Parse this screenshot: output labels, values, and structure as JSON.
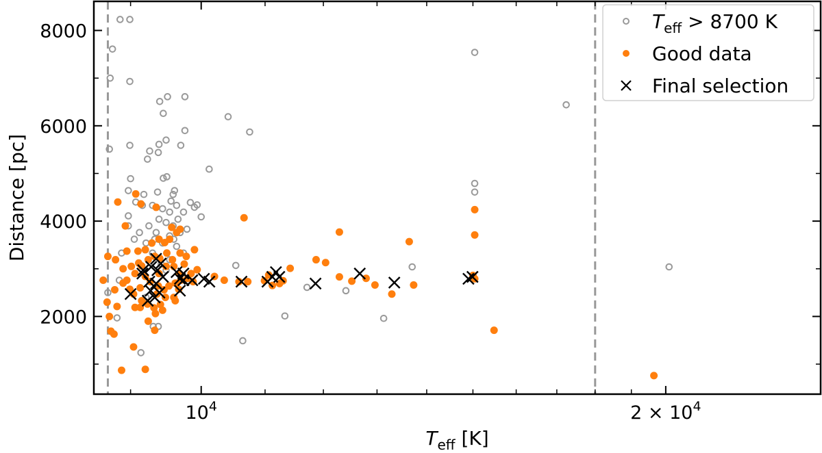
{
  "chart_data": {
    "type": "scatter",
    "xscale": "log",
    "xlim": [
      8520,
      25200
    ],
    "ylim": [
      370,
      8610
    ],
    "grid": false,
    "legend_placement": "top-right",
    "xlabel": {
      "main": "T",
      "sub": "eff",
      "rest": " [K]"
    },
    "ylabel": "Distance [pc]",
    "x_major_ticks": [
      {
        "value": 10000,
        "base": "10",
        "exp": "4"
      },
      {
        "value": 20000,
        "base": "2 × 10",
        "exp": "4"
      }
    ],
    "x_minor_ticks": [
      9000,
      11000,
      12000,
      13000,
      14000,
      15000,
      16000,
      17000,
      18000,
      19000
    ],
    "y_major_ticks": [
      {
        "value": 2000,
        "label": "2000"
      },
      {
        "value": 4000,
        "label": "4000"
      },
      {
        "value": 6000,
        "label": "6000"
      },
      {
        "value": 8000,
        "label": "8000"
      }
    ],
    "y_minor_ticks": [
      1000,
      3000,
      5000,
      7000
    ],
    "vlines": [
      {
        "x": 8700,
        "color": "#999999",
        "style": "dashed"
      },
      {
        "x": 18000,
        "color": "#999999",
        "style": "dashed"
      }
    ],
    "series": [
      {
        "name": {
          "main": "T",
          "sub": "eff",
          "rest": " > 8700 K"
        },
        "marker": "open-circle",
        "color": "#999999",
        "points": [
          [
            8860,
            8230
          ],
          [
            8990,
            8230
          ],
          [
            8760,
            7610
          ],
          [
            8730,
            7000
          ],
          [
            8990,
            6930
          ],
          [
            9510,
            6610
          ],
          [
            9400,
            6510
          ],
          [
            9450,
            6260
          ],
          [
            9760,
            6610
          ],
          [
            9760,
            5900
          ],
          [
            9700,
            5590
          ],
          [
            10120,
            5090
          ],
          [
            10410,
            6190
          ],
          [
            10750,
            5870
          ],
          [
            8720,
            5510
          ],
          [
            8990,
            5590
          ],
          [
            9260,
            5470
          ],
          [
            9390,
            5610
          ],
          [
            9490,
            5700
          ],
          [
            9230,
            5300
          ],
          [
            9380,
            5440
          ],
          [
            9000,
            4890
          ],
          [
            8970,
            4640
          ],
          [
            9500,
            4930
          ],
          [
            9180,
            4560
          ],
          [
            9370,
            4610
          ],
          [
            9610,
            4640
          ],
          [
            9840,
            4390
          ],
          [
            9940,
            4340
          ],
          [
            10000,
            4090
          ],
          [
            9070,
            4400
          ],
          [
            9160,
            4330
          ],
          [
            9300,
            4330
          ],
          [
            9440,
            4260
          ],
          [
            9540,
            4190
          ],
          [
            9640,
            4330
          ],
          [
            9740,
            4190
          ],
          [
            9390,
            4040
          ],
          [
            9490,
            3970
          ],
          [
            9590,
            3900
          ],
          [
            9250,
            3900
          ],
          [
            9350,
            3760
          ],
          [
            9540,
            3690
          ],
          [
            9690,
            3760
          ],
          [
            9790,
            3830
          ],
          [
            9120,
            3760
          ],
          [
            9210,
            3540
          ],
          [
            9440,
            3540
          ],
          [
            9640,
            3470
          ],
          [
            9740,
            3330
          ],
          [
            9300,
            3330
          ],
          [
            9540,
            3190
          ],
          [
            9490,
            2970
          ],
          [
            9450,
            4900
          ],
          [
            9590,
            4560
          ],
          [
            8880,
            3330
          ],
          [
            8850,
            2760
          ],
          [
            8970,
            3900
          ],
          [
            8970,
            4110
          ],
          [
            9560,
            4420
          ],
          [
            9660,
            4040
          ],
          [
            9900,
            4290
          ],
          [
            9050,
            3620
          ],
          [
            9330,
            3620
          ],
          [
            9600,
            3620
          ],
          [
            10530,
            3070
          ],
          [
            11710,
            2610
          ],
          [
            12410,
            2540
          ],
          [
            11330,
            2010
          ],
          [
            10640,
            1490
          ],
          [
            13130,
            1960
          ],
          [
            13700,
            3040
          ],
          [
            15040,
            7540
          ],
          [
            15040,
            4790
          ],
          [
            15040,
            4610
          ],
          [
            17240,
            6440
          ],
          [
            20100,
            3040
          ],
          [
            8700,
            2500
          ],
          [
            8820,
            1970
          ],
          [
            9140,
            1240
          ],
          [
            9310,
            1790
          ],
          [
            9380,
            1790
          ],
          [
            9420,
            3100
          ],
          [
            9210,
            2400
          ]
        ]
      },
      {
        "name": "Good data",
        "marker": "filled-circle",
        "color": "#ff7f0e",
        "points": [
          [
            8830,
            4400
          ],
          [
            9070,
            4570
          ],
          [
            9140,
            4360
          ],
          [
            8930,
            3900
          ],
          [
            9350,
            4290
          ],
          [
            9570,
            3870
          ],
          [
            9690,
            3830
          ],
          [
            9640,
            3760
          ],
          [
            9390,
            3620
          ],
          [
            9470,
            3550
          ],
          [
            9200,
            3400
          ],
          [
            9100,
            3370
          ],
          [
            8950,
            3370
          ],
          [
            8800,
            3190
          ],
          [
            9010,
            3050
          ],
          [
            9110,
            3120
          ],
          [
            9240,
            3190
          ],
          [
            9330,
            3260
          ],
          [
            9400,
            3220
          ],
          [
            9500,
            3330
          ],
          [
            9580,
            3190
          ],
          [
            9690,
            3330
          ],
          [
            9780,
            3260
          ],
          [
            9490,
            3050
          ],
          [
            9060,
            2900
          ],
          [
            9200,
            2840
          ],
          [
            9270,
            2730
          ],
          [
            9380,
            2640
          ],
          [
            9460,
            2560
          ],
          [
            9530,
            2640
          ],
          [
            9620,
            2700
          ],
          [
            9700,
            2760
          ],
          [
            9800,
            2800
          ],
          [
            9880,
            2730
          ],
          [
            9130,
            2600
          ],
          [
            9040,
            2470
          ],
          [
            8990,
            2570
          ],
          [
            8900,
            2700
          ],
          [
            8950,
            2760
          ],
          [
            9150,
            2330
          ],
          [
            9230,
            2260
          ],
          [
            9320,
            2180
          ],
          [
            9410,
            2250
          ],
          [
            9600,
            2400
          ],
          [
            9670,
            2570
          ],
          [
            9060,
            2190
          ],
          [
            9130,
            2190
          ],
          [
            9340,
            2060
          ],
          [
            9440,
            2130
          ],
          [
            9240,
            1900
          ],
          [
            8640,
            2760
          ],
          [
            8700,
            3260
          ],
          [
            8690,
            2300
          ],
          [
            8720,
            2000
          ],
          [
            8740,
            1690
          ],
          [
            8780,
            1630
          ],
          [
            8790,
            2560
          ],
          [
            8820,
            2210
          ],
          [
            8880,
            870
          ],
          [
            9200,
            890
          ],
          [
            9040,
            1360
          ],
          [
            9330,
            1710
          ],
          [
            9290,
            3540
          ],
          [
            9540,
            3620
          ],
          [
            9600,
            3050
          ],
          [
            9750,
            3100
          ],
          [
            9680,
            2900
          ],
          [
            9360,
            2470
          ],
          [
            9480,
            2400
          ],
          [
            9390,
            2900
          ],
          [
            9620,
            2330
          ],
          [
            9850,
            2900
          ],
          [
            10200,
            2840
          ],
          [
            10350,
            2760
          ],
          [
            10580,
            2730
          ],
          [
            10660,
            4070
          ],
          [
            10720,
            2730
          ],
          [
            10990,
            2750
          ],
          [
            11060,
            2870
          ],
          [
            11120,
            2650
          ],
          [
            11240,
            2690
          ],
          [
            11420,
            3010
          ],
          [
            11300,
            2750
          ],
          [
            11870,
            3190
          ],
          [
            12040,
            3130
          ],
          [
            12290,
            3770
          ],
          [
            12290,
            2830
          ],
          [
            12520,
            2740
          ],
          [
            12790,
            2800
          ],
          [
            12960,
            2660
          ],
          [
            13290,
            2470
          ],
          [
            13640,
            3570
          ],
          [
            13730,
            2660
          ],
          [
            15040,
            4240
          ],
          [
            15040,
            3710
          ],
          [
            15040,
            2790
          ],
          [
            15000,
            2860
          ],
          [
            15480,
            1710
          ],
          [
            19650,
            760
          ],
          [
            9900,
            3400
          ],
          [
            9940,
            2980
          ],
          [
            8900,
            3000
          ],
          [
            9150,
            3060
          ]
        ]
      },
      {
        "name": "Final selection",
        "marker": "x",
        "color": "#000000",
        "points": [
          [
            9000,
            2470
          ],
          [
            9170,
            2970
          ],
          [
            9255,
            2730
          ],
          [
            9282,
            3040
          ],
          [
            9349,
            3210
          ],
          [
            9368,
            2970
          ],
          [
            9415,
            3110
          ],
          [
            9349,
            2690
          ],
          [
            9273,
            2540
          ],
          [
            9234,
            2330
          ],
          [
            9330,
            2400
          ],
          [
            9445,
            2830
          ],
          [
            9396,
            2500
          ],
          [
            9160,
            2900
          ],
          [
            9639,
            2930
          ],
          [
            9688,
            2790
          ],
          [
            9738,
            2900
          ],
          [
            9738,
            2760
          ],
          [
            9688,
            2540
          ],
          [
            9868,
            2760
          ],
          [
            10041,
            2790
          ],
          [
            10123,
            2730
          ],
          [
            10620,
            2730
          ],
          [
            11040,
            2730
          ],
          [
            11120,
            2830
          ],
          [
            11180,
            2930
          ],
          [
            11236,
            2830
          ],
          [
            11860,
            2690
          ],
          [
            12670,
            2900
          ],
          [
            13340,
            2710
          ],
          [
            14900,
            2790
          ],
          [
            14990,
            2830
          ]
        ]
      }
    ]
  }
}
